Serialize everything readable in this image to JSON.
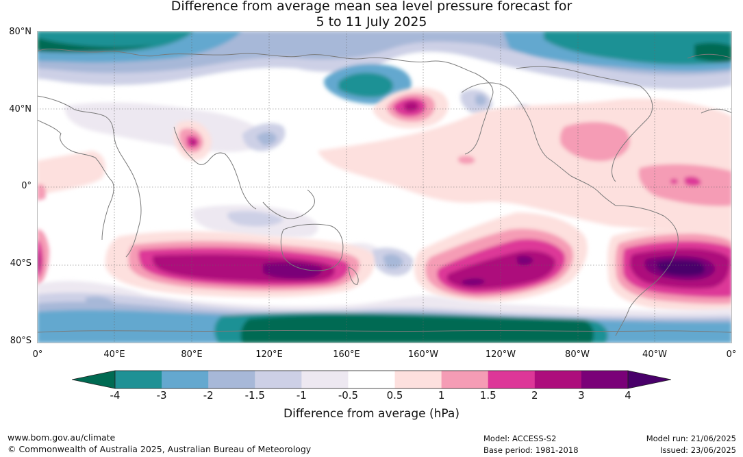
{
  "title": {
    "line1": "Difference from average mean sea level pressure forecast for",
    "line2": "5 to 11 July 2025"
  },
  "axes": {
    "lat_labels": [
      "80°N",
      "40°N",
      "0°",
      "40°S",
      "80°S"
    ],
    "lon_labels": [
      "0°",
      "40°E",
      "80°E",
      "120°E",
      "160°E",
      "160°W",
      "120°W",
      "80°W",
      "40°W",
      "0°"
    ]
  },
  "legend": {
    "label": "Difference from average (hPa)",
    "ticks": [
      "-4",
      "-3",
      "-2",
      "-1.5",
      "-1",
      "-0.5",
      "0.5",
      "1",
      "1.5",
      "2",
      "3",
      "4"
    ],
    "colors": [
      "#006a52",
      "#1f9195",
      "#64a8cf",
      "#a7b8d8",
      "#cdd0e6",
      "#ede8f1",
      "#ffffff",
      "#fde0de",
      "#f59cb5",
      "#dd3798",
      "#ad0d7c",
      "#7a0178",
      "#49006a"
    ]
  },
  "footer": {
    "url": "www.bom.gov.au/climate",
    "copyright": "© Commonwealth of Australia 2025, Australian Bureau of Meteorology",
    "model": "Model: ACCESS-S2",
    "base_period": "Base period: 1981-2018",
    "model_run": "Model run: 21/06/2025",
    "issued": "Issued: 23/06/2025"
  }
}
